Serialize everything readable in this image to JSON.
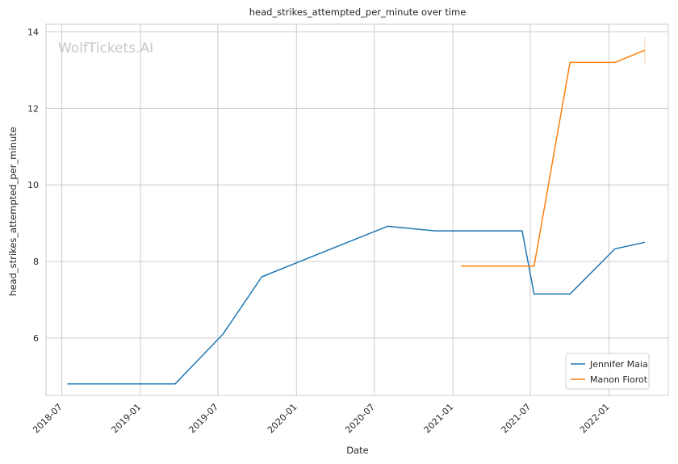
{
  "chart_data": {
    "type": "line",
    "title": "head_strikes_attempted_per_minute over time",
    "xlabel": "Date",
    "ylabel": "head_strikes_attempted_per_minute",
    "watermark": "WolfTickets.AI",
    "x_ticks": [
      "2018-07",
      "2019-01",
      "2019-07",
      "2020-01",
      "2020-07",
      "2021-01",
      "2021-07",
      "2022-01"
    ],
    "y_ticks": [
      6,
      8,
      10,
      12,
      14
    ],
    "xlim": [
      "2018-05-25",
      "2022-05-20"
    ],
    "ylim": [
      4.5,
      14.2
    ],
    "grid": true,
    "legend_position": "bottom-right",
    "series": [
      {
        "name": "Jennifer Maia",
        "color": "#1f77b4",
        "points": [
          [
            "2018-07-14",
            4.8
          ],
          [
            "2019-03-23",
            4.8
          ],
          [
            "2019-07-13",
            6.1
          ],
          [
            "2019-10-12",
            7.6
          ],
          [
            "2020-08-01",
            8.92
          ],
          [
            "2020-11-21",
            8.8
          ],
          [
            "2021-06-12",
            8.8
          ],
          [
            "2021-07-10",
            7.15
          ],
          [
            "2021-10-02",
            7.15
          ],
          [
            "2022-01-15",
            8.33
          ],
          [
            "2022-03-26",
            8.5
          ]
        ]
      },
      {
        "name": "Manon Fiorot",
        "color": "#ff7f0e",
        "points": [
          [
            "2021-01-20",
            7.88
          ],
          [
            "2021-07-10",
            7.88
          ],
          [
            "2021-10-02",
            13.2
          ],
          [
            "2022-01-15",
            13.2
          ],
          [
            "2022-03-26",
            13.52
          ]
        ],
        "error_bar": {
          "x": "2022-03-26",
          "low": 13.15,
          "high": 13.85
        }
      }
    ]
  }
}
